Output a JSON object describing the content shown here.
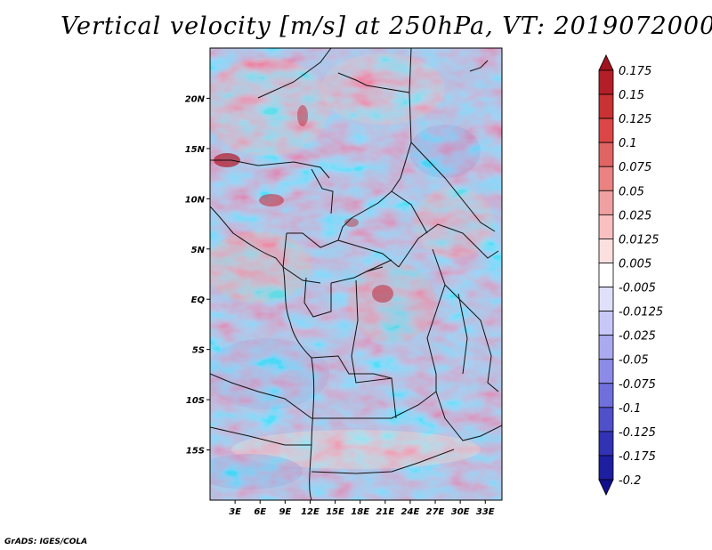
{
  "title": "Vertical velocity [m/s] at 250hPa, VT: 2019072000",
  "credit": "GrADS: IGES/COLA",
  "map": {
    "lon_range": [
      0,
      35
    ],
    "lat_range": [
      -20,
      25
    ],
    "lat_ticks": [
      {
        "value": 20,
        "label": "20N"
      },
      {
        "value": 15,
        "label": "15N"
      },
      {
        "value": 10,
        "label": "10N"
      },
      {
        "value": 5,
        "label": "5N"
      },
      {
        "value": 0,
        "label": "EQ"
      },
      {
        "value": -5,
        "label": "5S"
      },
      {
        "value": -10,
        "label": "10S"
      },
      {
        "value": -15,
        "label": "15S"
      }
    ],
    "lon_ticks": [
      {
        "value": 3,
        "label": "3E"
      },
      {
        "value": 6,
        "label": "6E"
      },
      {
        "value": 9,
        "label": "9E"
      },
      {
        "value": 12,
        "label": "12E"
      },
      {
        "value": 15,
        "label": "15E"
      },
      {
        "value": 18,
        "label": "18E"
      },
      {
        "value": 21,
        "label": "21E"
      },
      {
        "value": 24,
        "label": "24E"
      },
      {
        "value": 27,
        "label": "27E"
      },
      {
        "value": 30,
        "label": "30E"
      },
      {
        "value": 33,
        "label": "33E"
      }
    ]
  },
  "colorbar": {
    "levels": [
      "0.175",
      "0.15",
      "0.125",
      "0.1",
      "0.075",
      "0.05",
      "0.025",
      "0.0125",
      "0.005",
      "-0.005",
      "-0.0125",
      "-0.025",
      "-0.05",
      "-0.075",
      "-0.1",
      "-0.125",
      "-0.175",
      "-0.2"
    ],
    "colors": [
      "#a0141e",
      "#b41e28",
      "#c83232",
      "#dc4646",
      "#e06464",
      "#ea8282",
      "#f0a0a0",
      "#f8c0c0",
      "#fce0e0",
      "#ffffff",
      "#e0e0fa",
      "#c8c8f8",
      "#aaaaf0",
      "#8c8ce8",
      "#7070dc",
      "#5050c8",
      "#3232b4",
      "#1e1ea0",
      "#10108c"
    ]
  }
}
